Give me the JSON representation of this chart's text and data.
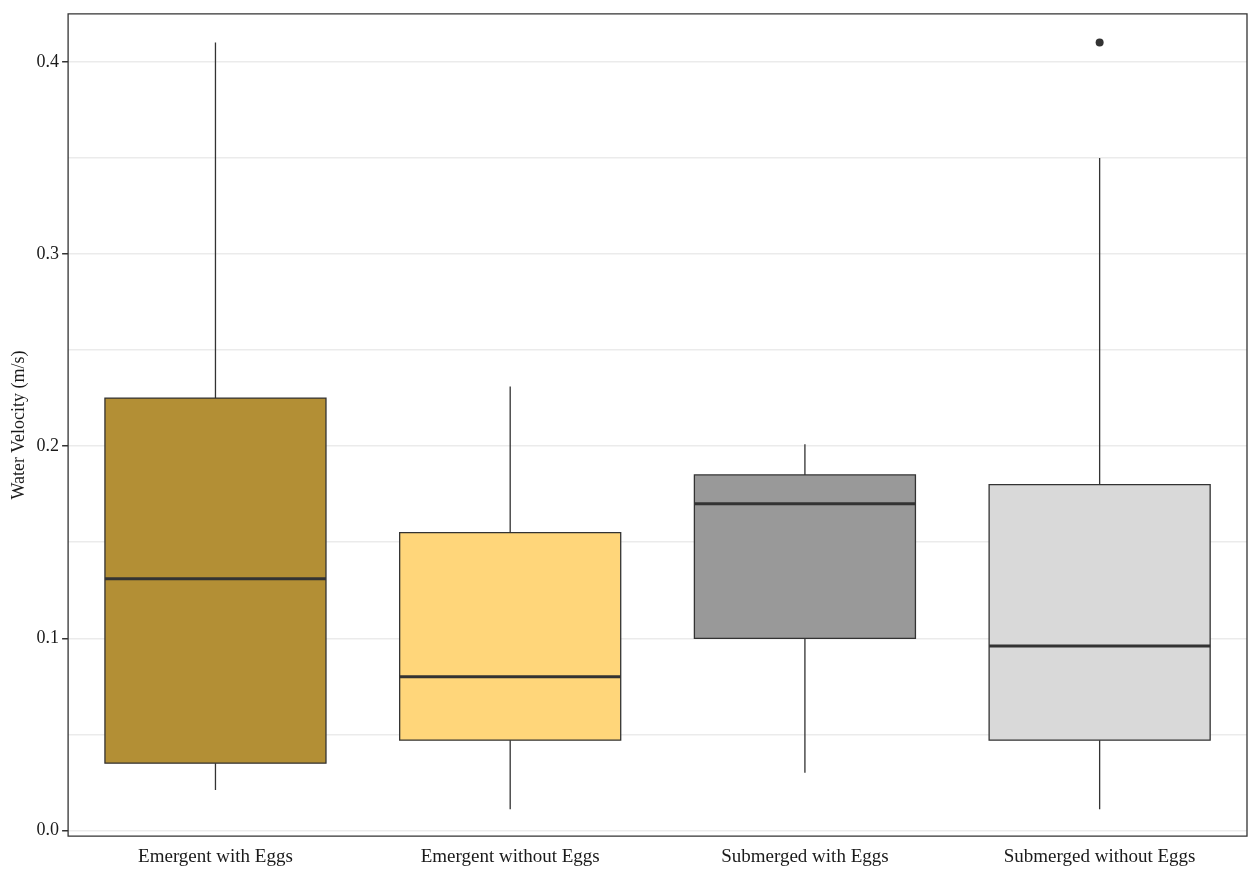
{
  "chart_data": {
    "type": "box",
    "ylabel": "Water Velocity (m/s)",
    "categories": [
      "Emergent with Eggs",
      "Emergent without Eggs",
      "Submerged with Eggs",
      "Submerged without Eggs"
    ],
    "colors": [
      "#b38f35",
      "#ffd67a",
      "#999999",
      "#d9d9d9"
    ],
    "boxes": [
      {
        "low": 0.021,
        "q1": 0.035,
        "median": 0.131,
        "q3": 0.225,
        "high": 0.41
      },
      {
        "low": 0.011,
        "q1": 0.047,
        "median": 0.08,
        "q3": 0.155,
        "high": 0.231
      },
      {
        "low": 0.03,
        "q1": 0.1,
        "median": 0.17,
        "q3": 0.185,
        "high": 0.201
      },
      {
        "low": 0.011,
        "q1": 0.047,
        "median": 0.096,
        "q3": 0.18,
        "high": 0.35,
        "outliers": [
          0.41
        ]
      }
    ],
    "ylim": [
      -0.003,
      0.425
    ],
    "yticks": [
      {
        "value": 0,
        "label": "0.0"
      },
      {
        "value": 0.05,
        "label": null
      },
      {
        "value": 0.1,
        "label": "0.1"
      },
      {
        "value": 0.15,
        "label": null
      },
      {
        "value": 0.2,
        "label": "0.2"
      },
      {
        "value": 0.25,
        "label": null
      },
      {
        "value": 0.3,
        "label": "0.3"
      },
      {
        "value": 0.35,
        "label": null
      },
      {
        "value": 0.4,
        "label": "0.4"
      }
    ],
    "grid": "y",
    "legend": false
  }
}
